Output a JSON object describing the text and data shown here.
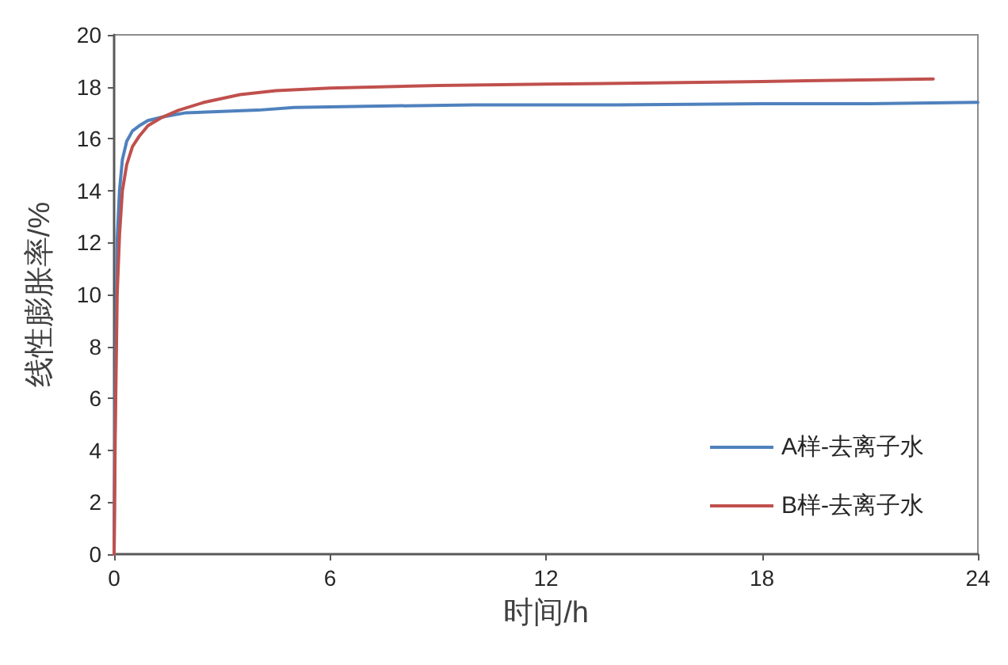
{
  "chart_data": {
    "type": "line",
    "xlabel": "时间/h",
    "ylabel": "线性膨胀率/%",
    "xlim": [
      0,
      24
    ],
    "xticks": [
      0,
      6,
      12,
      18,
      24
    ],
    "ylim": [
      0,
      20
    ],
    "yticks": [
      0,
      2,
      4,
      6,
      8,
      10,
      12,
      14,
      16,
      18,
      20
    ],
    "grid": false,
    "legend": "bottom right",
    "marker": "none",
    "line_style": "solid",
    "series": [
      {
        "name": "A样-去离子水",
        "color": "#4f81bd",
        "x": [
          0,
          0.03,
          0.085,
          0.15,
          0.23,
          0.35,
          0.51,
          0.7,
          0.94,
          1.4,
          2,
          3,
          4,
          5,
          7,
          10,
          14,
          18,
          21,
          24
        ],
        "values": [
          0,
          6,
          12.1,
          14,
          15.2,
          15.9,
          16.3,
          16.5,
          16.7,
          16.85,
          17,
          17.05,
          17.1,
          17.2,
          17.25,
          17.3,
          17.3,
          17.35,
          17.35,
          17.4
        ]
      },
      {
        "name": "B样-去离子水",
        "color": "#c0504d",
        "x": [
          0,
          0.03,
          0.085,
          0.15,
          0.23,
          0.35,
          0.51,
          0.7,
          0.94,
          1.3,
          1.8,
          2.5,
          3.5,
          4.5,
          6,
          9,
          12,
          15,
          18,
          20,
          22.76
        ],
        "values": [
          0,
          4.5,
          10,
          12.3,
          14,
          15,
          15.7,
          16.1,
          16.5,
          16.8,
          17.1,
          17.4,
          17.7,
          17.85,
          17.95,
          18.05,
          18.1,
          18.15,
          18.2,
          18.25,
          18.3
        ]
      }
    ]
  }
}
